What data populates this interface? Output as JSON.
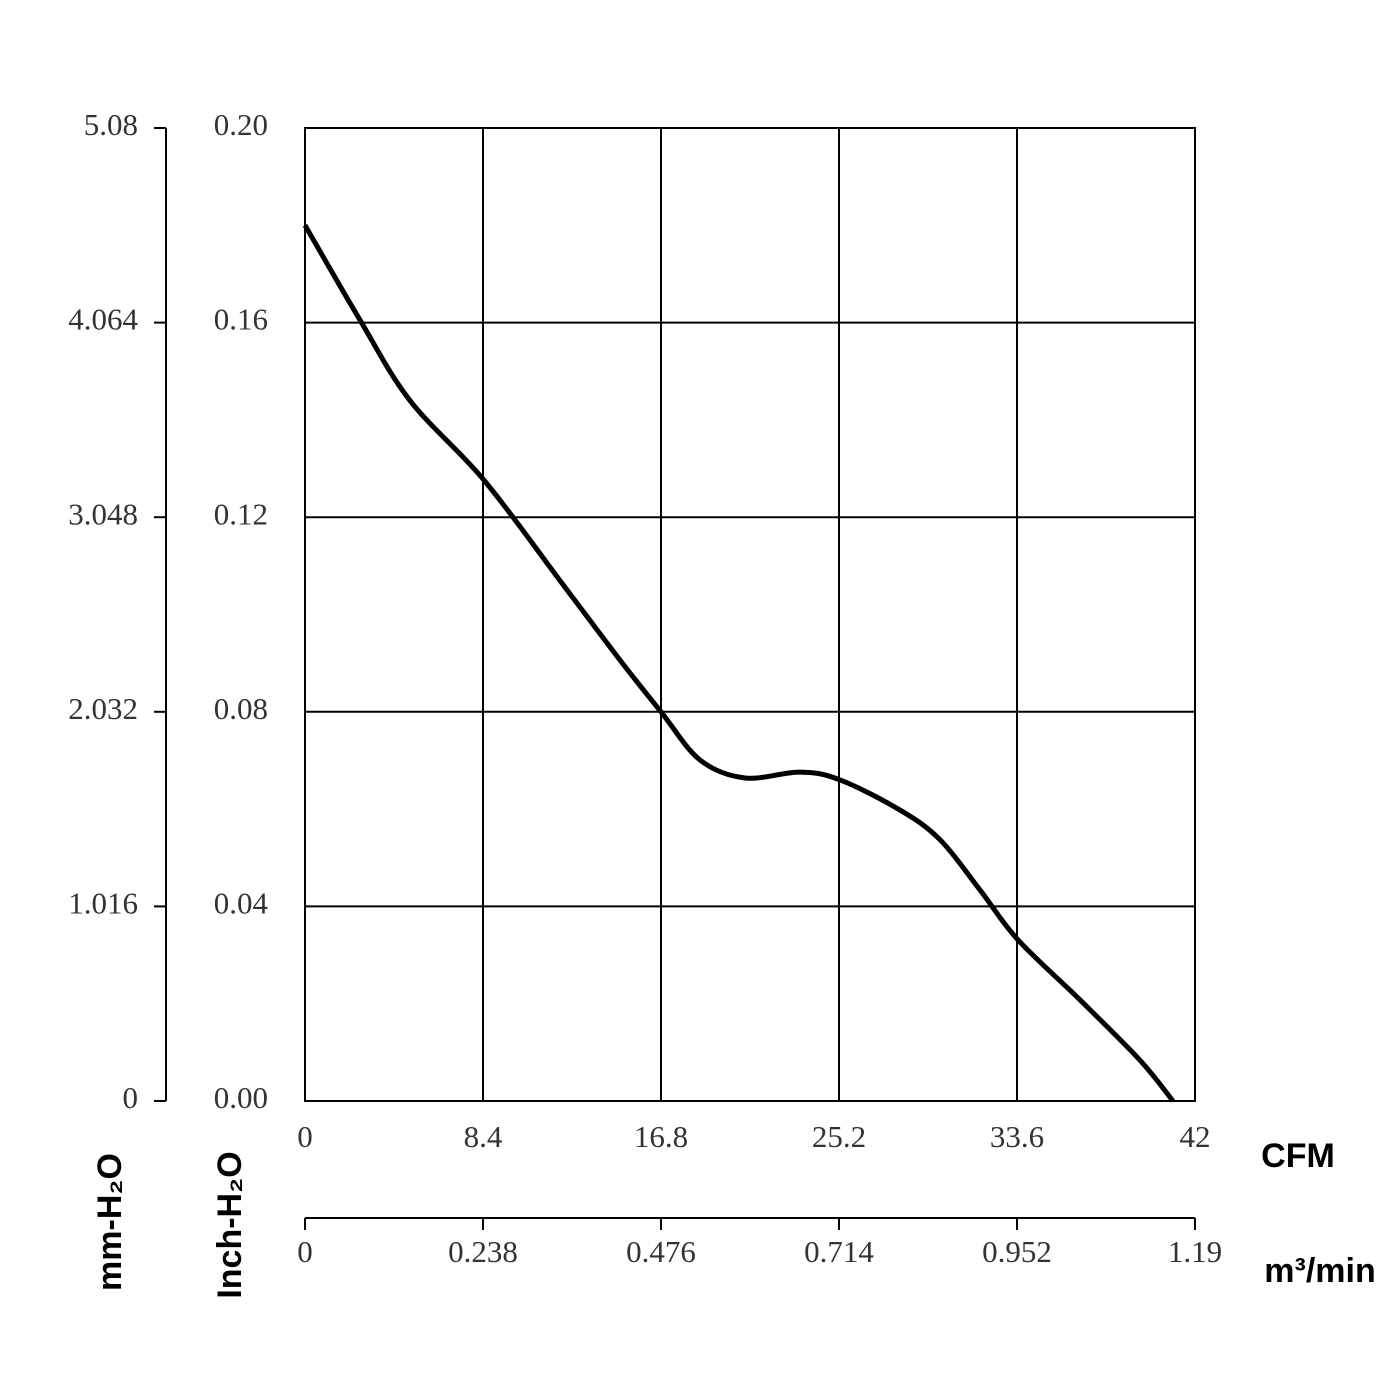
{
  "chart_data": {
    "type": "line",
    "color": "#000000",
    "grid": true,
    "x": [
      0,
      2.6,
      4.95,
      8.45,
      12.03,
      14.87,
      16.8,
      18.64,
      20.77,
      23.36,
      25.25,
      28.08,
      29.97,
      31.85,
      33.65,
      36.57,
      39.4,
      40.96
    ],
    "values": [
      0.18,
      0.1605,
      0.144,
      0.1276,
      0.107,
      0.0906,
      0.08,
      0.0701,
      0.0664,
      0.0676,
      0.066,
      0.0598,
      0.0537,
      0.0434,
      0.0331,
      0.0208,
      0.0084,
      0
    ],
    "xlim": [
      0,
      42
    ],
    "xticks": [
      0,
      8.4,
      16.8,
      25.2,
      33.6,
      42
    ],
    "xlabel": "CFM",
    "x2lim": [
      0,
      1.19
    ],
    "x2ticks": [
      0,
      0.238,
      0.476,
      0.714,
      0.952,
      1.19
    ],
    "x2label": "m³/min",
    "ylim": [
      0,
      0.2
    ],
    "yticks": [
      {
        "value": 0,
        "label": "0.00"
      },
      0.04,
      0.08,
      0.12,
      0.16,
      {
        "value": 0.2,
        "label": "0.20"
      }
    ],
    "ylabel": "Inch-H₂O",
    "y2lim": [
      0,
      5.08
    ],
    "y2ticks": [
      0,
      1.016,
      2.032,
      3.048,
      4.064,
      5.08
    ],
    "y2label": "mm-H₂O"
  }
}
